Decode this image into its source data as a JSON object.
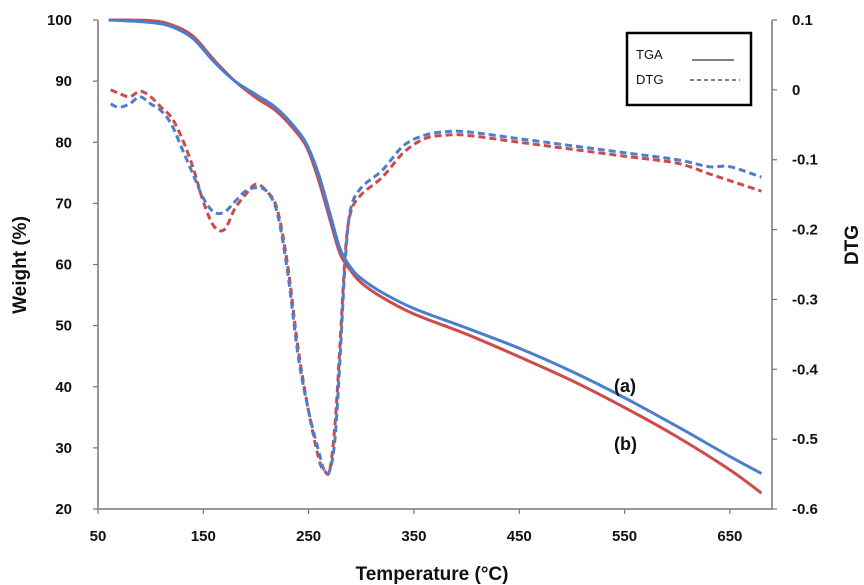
{
  "chart_data": {
    "type": "line",
    "xlabel": "Temperature (°C)",
    "ylabel": "Weight (%)",
    "y2label": "DTG",
    "xlim": [
      50,
      690
    ],
    "ylim": [
      20,
      100
    ],
    "y2lim": [
      -0.6,
      0.1
    ],
    "xticks": [
      "50",
      "150",
      "250",
      "350",
      "450",
      "550",
      "650"
    ],
    "yticks": [
      "20",
      "30",
      "40",
      "50",
      "60",
      "70",
      "80",
      "90",
      "100"
    ],
    "y2ticks": [
      "0.1",
      "0",
      "-0.1",
      "-0.2",
      "-0.3",
      "-0.4",
      "-0.5",
      "-0.6"
    ],
    "grid": false,
    "legend": {
      "placement": "top-right",
      "entries": [
        {
          "label": "TGA",
          "style": "solid"
        },
        {
          "label": "DTG",
          "style": "dashed"
        }
      ]
    },
    "annotations": [
      "(a)",
      "(b)"
    ],
    "colors": {
      "a": "#4a7fcf",
      "b": "#cf4a4a"
    },
    "series": [
      {
        "id": "a",
        "kind": "TGA",
        "axis": "left",
        "x": [
          60,
          100,
          120,
          140,
          160,
          180,
          200,
          220,
          240,
          250,
          260,
          270,
          280,
          290,
          300,
          320,
          350,
          400,
          450,
          500,
          550,
          600,
          650,
          680
        ],
        "y": [
          100,
          99.6,
          98.9,
          97,
          93.2,
          90,
          87.8,
          85.5,
          81.8,
          79,
          74.5,
          68.5,
          62.5,
          59.5,
          57.7,
          55.4,
          52.8,
          49.6,
          46.3,
          42.5,
          38.2,
          33.5,
          28.6,
          25.8
        ]
      },
      {
        "id": "b",
        "kind": "TGA",
        "axis": "left",
        "x": [
          60,
          100,
          120,
          140,
          160,
          180,
          200,
          220,
          240,
          250,
          260,
          270,
          280,
          290,
          300,
          320,
          350,
          400,
          450,
          500,
          550,
          600,
          650,
          680
        ],
        "y": [
          100,
          99.9,
          99.2,
          97.4,
          93.5,
          90,
          87.3,
          85,
          81.3,
          78.5,
          73.5,
          67.5,
          61.7,
          59,
          57,
          54.6,
          51.9,
          48.6,
          44.9,
          41,
          36.6,
          31.8,
          26.4,
          22.6
        ]
      },
      {
        "id": "a",
        "kind": "DTG",
        "axis": "right",
        "x": [
          62,
          70,
          80,
          90,
          100,
          110,
          120,
          130,
          140,
          150,
          160,
          170,
          180,
          190,
          200,
          210,
          220,
          230,
          240,
          250,
          260,
          265,
          270,
          275,
          280,
          285,
          290,
          300,
          320,
          340,
          360,
          380,
          400,
          450,
          500,
          550,
          600,
          630,
          650,
          680
        ],
        "y": [
          -0.02,
          -0.025,
          -0.02,
          -0.01,
          -0.02,
          -0.03,
          -0.05,
          -0.085,
          -0.12,
          -0.155,
          -0.175,
          -0.175,
          -0.16,
          -0.145,
          -0.14,
          -0.145,
          -0.175,
          -0.26,
          -0.38,
          -0.46,
          -0.52,
          -0.545,
          -0.545,
          -0.5,
          -0.38,
          -0.24,
          -0.17,
          -0.14,
          -0.115,
          -0.08,
          -0.065,
          -0.06,
          -0.06,
          -0.07,
          -0.08,
          -0.09,
          -0.1,
          -0.11,
          -0.11,
          -0.125
        ]
      },
      {
        "id": "b",
        "kind": "DTG",
        "axis": "right",
        "x": [
          62,
          70,
          80,
          90,
          100,
          110,
          120,
          130,
          140,
          150,
          160,
          170,
          180,
          190,
          200,
          210,
          220,
          230,
          240,
          250,
          260,
          265,
          270,
          275,
          280,
          285,
          290,
          300,
          320,
          340,
          360,
          380,
          400,
          450,
          500,
          550,
          600,
          630,
          650,
          680
        ],
        "y": [
          0,
          -0.005,
          -0.01,
          -0.002,
          -0.01,
          -0.025,
          -0.04,
          -0.07,
          -0.11,
          -0.16,
          -0.195,
          -0.2,
          -0.17,
          -0.15,
          -0.135,
          -0.145,
          -0.17,
          -0.25,
          -0.37,
          -0.46,
          -0.53,
          -0.545,
          -0.545,
          -0.48,
          -0.36,
          -0.23,
          -0.175,
          -0.15,
          -0.125,
          -0.09,
          -0.07,
          -0.065,
          -0.065,
          -0.075,
          -0.085,
          -0.095,
          -0.105,
          -0.12,
          -0.13,
          -0.145
        ]
      }
    ]
  }
}
